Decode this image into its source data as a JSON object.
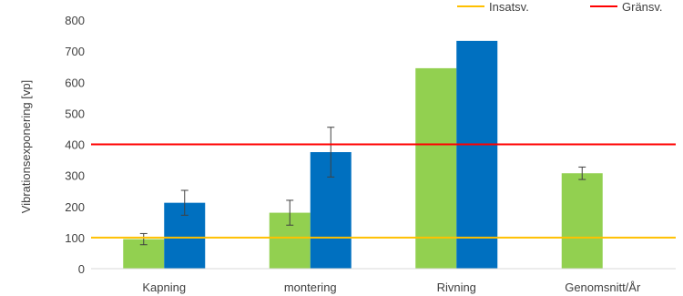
{
  "chart_data": {
    "type": "bar",
    "title": "",
    "xlabel": "",
    "ylabel": "Vibrationsexponering [vp]",
    "ylim": [
      0,
      800
    ],
    "yticks": [
      0,
      100,
      200,
      300,
      400,
      500,
      600,
      700,
      800
    ],
    "grid": false,
    "categories": [
      "Kapning",
      "montering",
      "Rivning",
      "Genomsnitt/År"
    ],
    "series": [
      {
        "name": "",
        "color": "#92d050",
        "values": [
          95,
          180,
          645,
          307
        ],
        "errors": [
          18,
          40,
          null,
          20
        ]
      },
      {
        "name": "",
        "color": "#0070c0",
        "values": [
          212,
          375,
          733,
          null
        ],
        "errors": [
          40,
          80,
          null,
          null
        ]
      }
    ],
    "reference_lines": [
      {
        "name": "Insatsv.",
        "value": 100,
        "color": "#ffc000"
      },
      {
        "name": "Gränsv.",
        "value": 400,
        "color": "#ff0000"
      }
    ],
    "legend_position": "top-right"
  }
}
